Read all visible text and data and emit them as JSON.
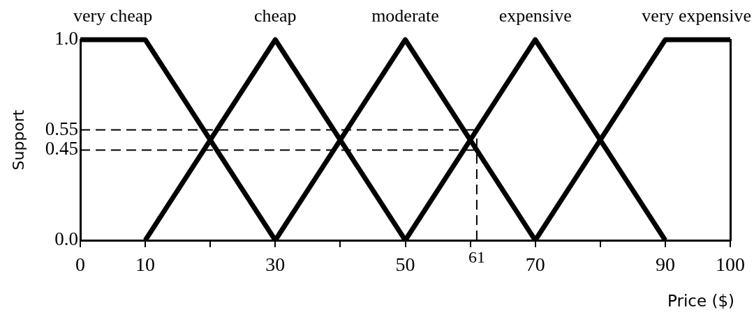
{
  "chart_data": {
    "type": "line",
    "xlabel": "Price ($)",
    "ylabel": "Support",
    "xlim": [
      0,
      100
    ],
    "xticks": [
      0,
      10,
      {
        "value": 20,
        "label": null
      },
      30,
      {
        "value": 40,
        "label": null
      },
      50,
      {
        "value": 60,
        "label": null
      },
      70,
      {
        "value": 80,
        "label": null
      },
      90,
      100
    ],
    "ylim": [
      0,
      1
    ],
    "yticks": [
      {
        "value": 0,
        "label": "0.0"
      },
      0.45,
      0.55,
      {
        "value": 1,
        "label": "1.0"
      }
    ],
    "grid": false,
    "legend": false,
    "marker": "none",
    "line_style": "solid",
    "series": [
      {
        "name": "very cheap",
        "color": "#000000",
        "x": [
          0,
          10,
          30
        ],
        "values": [
          1,
          1,
          0
        ]
      },
      {
        "name": "cheap",
        "color": "#000000",
        "x": [
          10,
          30,
          50
        ],
        "values": [
          0,
          1,
          0
        ]
      },
      {
        "name": "moderate",
        "color": "#000000",
        "x": [
          30,
          50,
          70
        ],
        "values": [
          0,
          1,
          0
        ]
      },
      {
        "name": "expensive",
        "color": "#000000",
        "x": [
          50,
          70,
          90
        ],
        "values": [
          0,
          1,
          0
        ]
      },
      {
        "name": "very expensive",
        "color": "#000000",
        "x": [
          70,
          90,
          100
        ],
        "values": [
          0,
          1,
          1
        ]
      },
      {
        "color": "#000000",
        "x": [
          0,
          61
        ],
        "values": [
          0.55,
          0.55
        ],
        "line_style": "dashed"
      },
      {
        "color": "#000000",
        "x": [
          0,
          61
        ],
        "values": [
          0.45,
          0.45
        ],
        "line_style": "dashed"
      },
      {
        "color": "#000000",
        "x": [
          61,
          61
        ],
        "values": [
          0,
          0.55
        ],
        "line_style": "dashed"
      }
    ],
    "annotations": [
      {
        "text": "61",
        "x": 61,
        "y": 0
      }
    ]
  }
}
